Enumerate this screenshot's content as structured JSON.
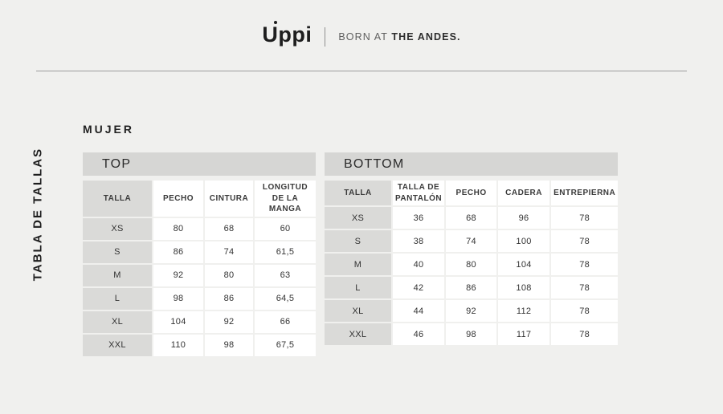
{
  "header": {
    "logo_u": "U",
    "logo_rest": "ppi",
    "tagline_light": "BORN AT",
    "tagline_bold": "THE ANDES."
  },
  "page": {
    "vertical_title": "TABLA DE TALLAS",
    "section_title": "MUJER"
  },
  "tables": [
    {
      "title": "TOP",
      "columns": [
        "TALLA",
        "PECHO",
        "CINTURA",
        "LONGITUD DE LA MANGA"
      ],
      "rows": [
        [
          "XS",
          "80",
          "68",
          "60"
        ],
        [
          "S",
          "86",
          "74",
          "61,5"
        ],
        [
          "M",
          "92",
          "80",
          "63"
        ],
        [
          "L",
          "98",
          "86",
          "64,5"
        ],
        [
          "XL",
          "104",
          "92",
          "66"
        ],
        [
          "XXL",
          "110",
          "98",
          "67,5"
        ]
      ]
    },
    {
      "title": "BOTTOM",
      "columns": [
        "TALLA",
        "TALLA DE PANTALÓN",
        "PECHO",
        "CADERA",
        "ENTREPIERNA"
      ],
      "rows": [
        [
          "XS",
          "36",
          "68",
          "96",
          "78"
        ],
        [
          "S",
          "38",
          "74",
          "100",
          "78"
        ],
        [
          "M",
          "40",
          "80",
          "104",
          "78"
        ],
        [
          "L",
          "42",
          "86",
          "108",
          "78"
        ],
        [
          "XL",
          "44",
          "92",
          "112",
          "78"
        ],
        [
          "XXL",
          "46",
          "98",
          "117",
          "78"
        ]
      ]
    }
  ],
  "colors": {
    "background": "#f0f0ee",
    "band": "#d6d6d4",
    "size_column": "#dadad8",
    "cell": "#ffffff",
    "text": "#333333",
    "divider": "#9c9c9c"
  }
}
